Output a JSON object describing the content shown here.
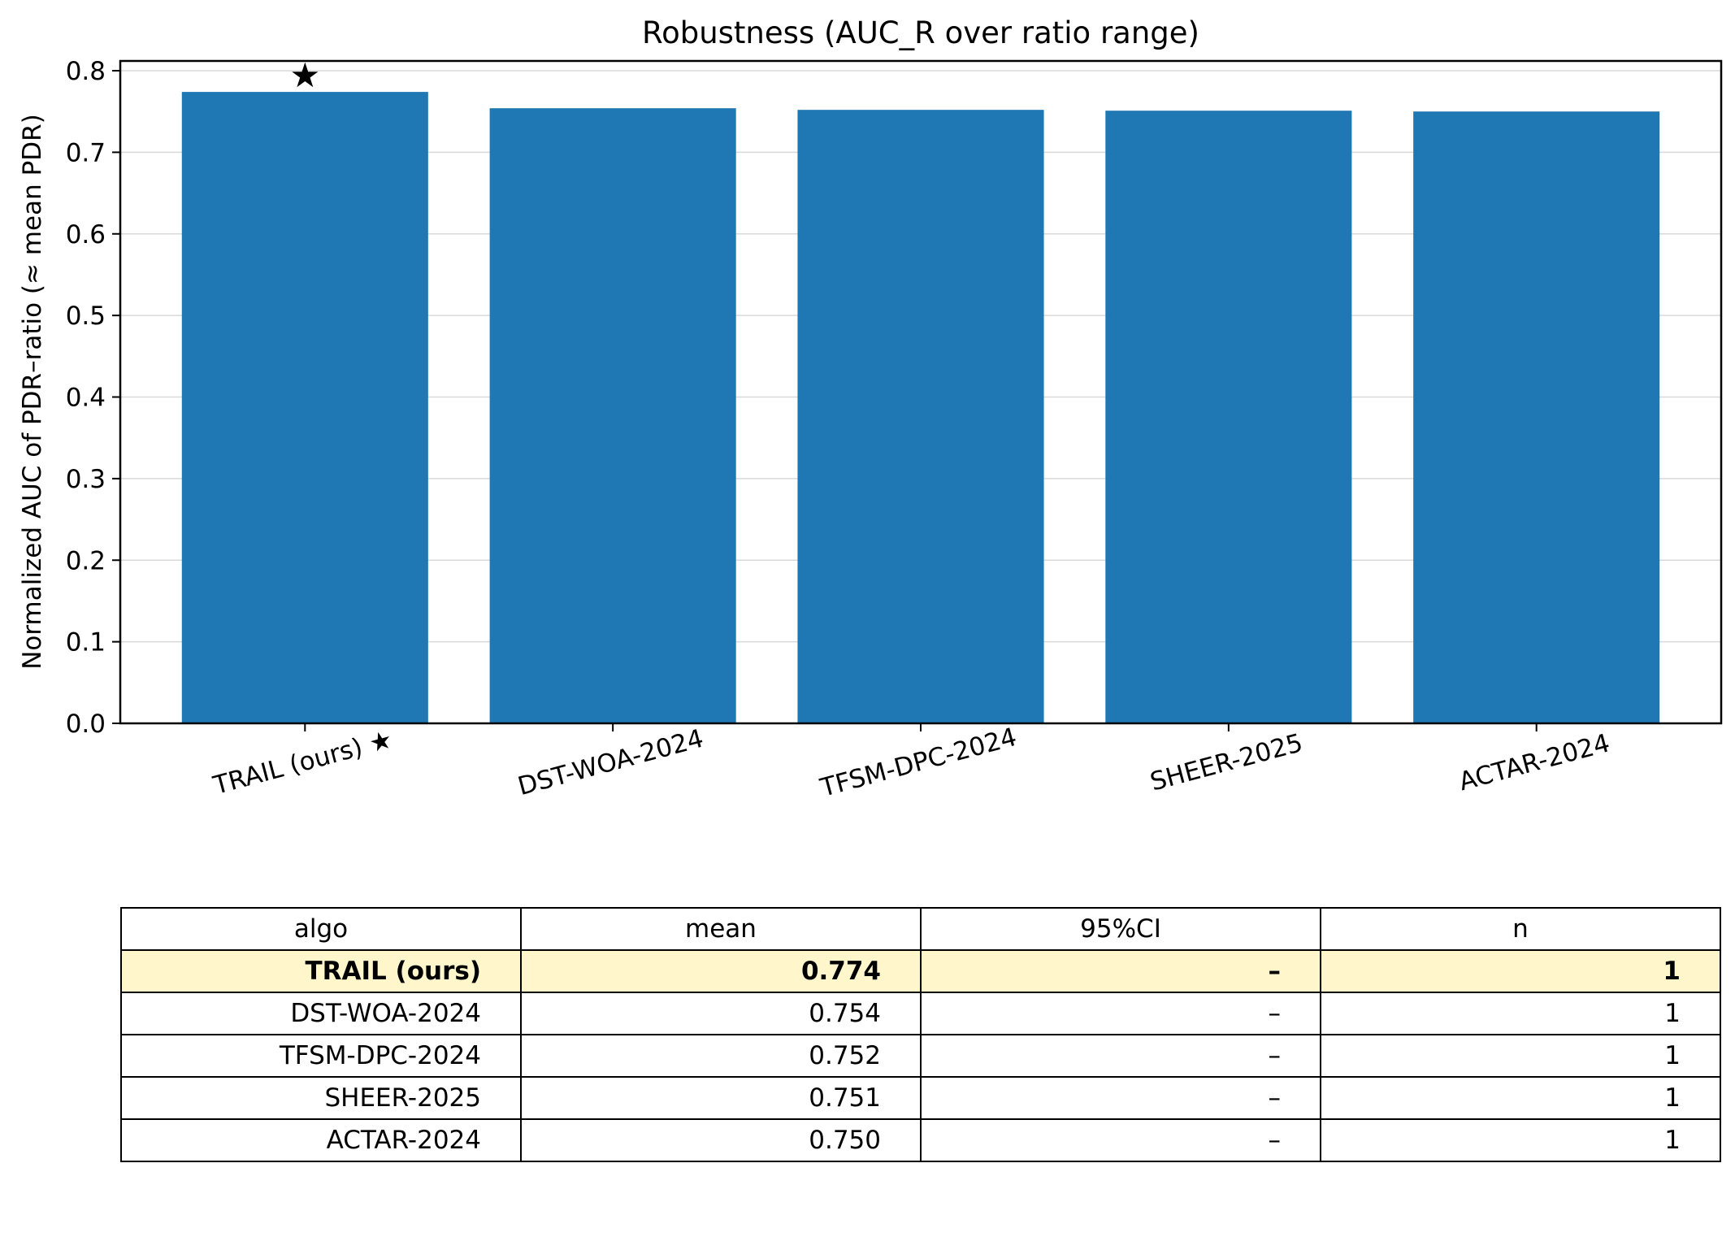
{
  "chart_data": {
    "type": "bar",
    "title": "Robustness (AUC_R over ratio range)",
    "ylabel": "Normalized AUC of PDR–ratio (≈ mean PDR)",
    "xlabel": "",
    "categories": [
      "TRAIL (ours) ★",
      "DST-WOA-2024",
      "TFSM-DPC-2024",
      "SHEER-2025",
      "ACTAR-2024"
    ],
    "values": [
      0.774,
      0.754,
      0.752,
      0.751,
      0.75
    ],
    "ylim": [
      0,
      0.8
    ],
    "yticks": [
      "0.0",
      "0.1",
      "0.2",
      "0.3",
      "0.4",
      "0.5",
      "0.6",
      "0.7",
      "0.8"
    ],
    "grid": "horizontal",
    "bar_color": "#1f77b4",
    "best_marker": {
      "symbol": "★",
      "category_index": 0
    }
  },
  "table": {
    "columns": [
      "algo",
      "mean",
      "95%CI",
      "n"
    ],
    "rows": [
      [
        "TRAIL (ours)",
        "0.774",
        "–",
        "1"
      ],
      [
        "DST-WOA-2024",
        "0.754",
        "–",
        "1"
      ],
      [
        "TFSM-DPC-2024",
        "0.752",
        "–",
        "1"
      ],
      [
        "SHEER-2025",
        "0.751",
        "–",
        "1"
      ],
      [
        "ACTAR-2024",
        "0.750",
        "–",
        "1"
      ]
    ],
    "highlight_row": 0,
    "highlight_color": "#fff6cc"
  }
}
